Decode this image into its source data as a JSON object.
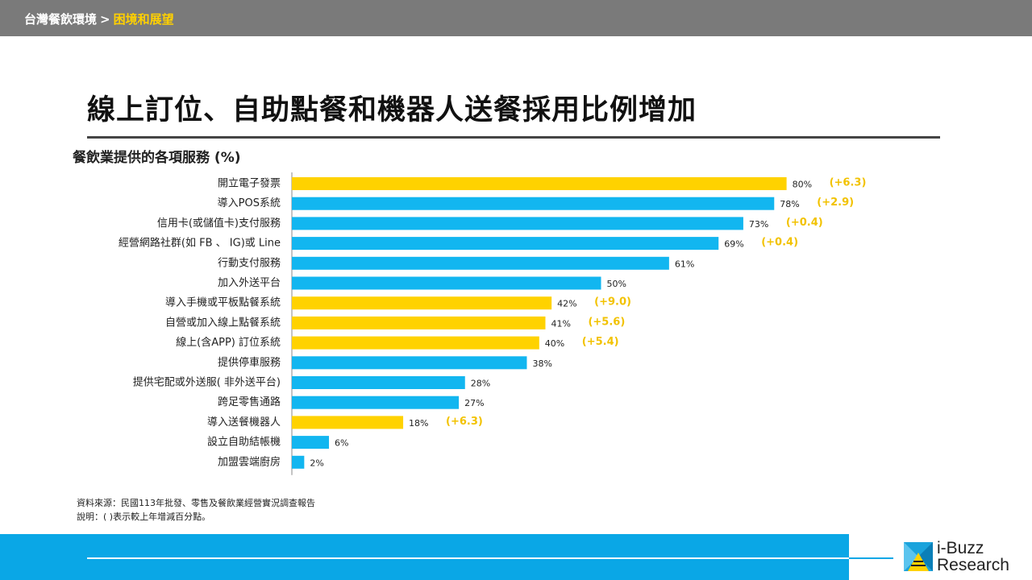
{
  "header": {
    "breadcrumb_section": "台灣餐飲環境",
    "breadcrumb_separator": ">",
    "breadcrumb_current": "困境和展望"
  },
  "title": "線上訂位、自助點餐和機器人送餐採用比例增加",
  "chart_data": {
    "type": "bar",
    "orientation": "horizontal",
    "title": "餐飲業提供的各項服務 (%)",
    "xlim": [
      0,
      100
    ],
    "categories": [
      "開立電子發票",
      "導入POS系統",
      "信用卡(或儲值卡)支付服務",
      "經營網路社群(如 FB 、 IG)或 Line",
      "行動支付服務",
      "加入外送平台",
      "導入手機或平板點餐系統",
      "自營或加入線上點餐系統",
      "線上(含APP) 訂位系統",
      "提供停車服務",
      "提供宅配或外送服( 非外送平台)",
      "跨足零售通路",
      "導入送餐機器人",
      "設立自助結帳機",
      "加盟雲端廚房"
    ],
    "values": [
      80,
      78,
      73,
      69,
      61,
      50,
      42,
      41,
      40,
      38,
      28,
      27,
      18,
      6,
      2
    ],
    "value_labels": [
      "80%",
      "78%",
      "73%",
      "69%",
      "61%",
      "50%",
      "42%",
      "41%",
      "40%",
      "38%",
      "28%",
      "27%",
      "18%",
      "6%",
      "2%"
    ],
    "highlighted": [
      true,
      false,
      false,
      false,
      false,
      false,
      true,
      true,
      true,
      false,
      false,
      false,
      true,
      false,
      false
    ],
    "changes": [
      "(+6.3)",
      "(+2.9)",
      "(+0.4)",
      "(+0.4)",
      "",
      "",
      "(+9.0)",
      "(+5.6)",
      "(+5.4)",
      "",
      "",
      "",
      "(+6.3)",
      "",
      ""
    ],
    "colors": {
      "highlight": "#ffd200",
      "default": "#12b6f0",
      "change_text": "#f2c200"
    }
  },
  "footnotes": {
    "source": "資料來源：民國113年批發、零售及餐飲業經營實況調查報告",
    "note": "說明：( )表示較上年增減百分點。"
  },
  "logo": {
    "line1": "i-Buzz",
    "line2": "Research"
  }
}
